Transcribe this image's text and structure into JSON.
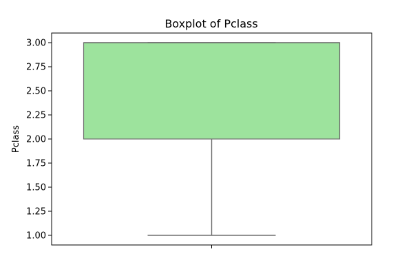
{
  "chart_data": {
    "type": "boxplot",
    "title": "Boxplot of Pclass",
    "ylabel": "Pclass",
    "xlabel": "",
    "ylim": [
      0.9,
      3.1
    ],
    "yticks": [
      1.0,
      1.25,
      1.5,
      1.75,
      2.0,
      2.25,
      2.5,
      2.75,
      3.0
    ],
    "ytick_labels": [
      "1.00",
      "1.25",
      "1.50",
      "1.75",
      "2.00",
      "2.25",
      "2.50",
      "2.75",
      "3.00"
    ],
    "grid": false,
    "legend": "none",
    "box": {
      "min": 1.0,
      "q1": 2.0,
      "median": 3.0,
      "q3": 3.0,
      "max": 3.0
    },
    "colors": {
      "box_fill": "#9de39d",
      "line": "#6e6e6e"
    }
  }
}
